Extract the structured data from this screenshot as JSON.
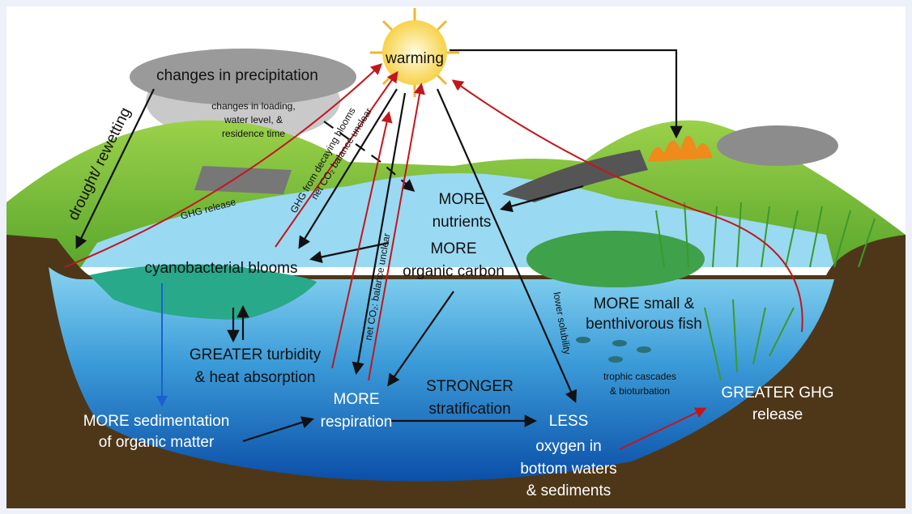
{
  "labels": {
    "warming": "warming",
    "precipitation": "changes in precipitation",
    "loading": [
      "changes in loading,",
      "water level, &",
      "residence time"
    ],
    "drought": "drought/ rewetting",
    "ghg_release": "GHG release",
    "ghg_blooms": "GHG from decaying blooms",
    "net_co2_upper": "net CO₂ balance unclear",
    "net_co2_lower": "net CO₂: balance unclear",
    "nutrients": [
      "MORE",
      "nutrients"
    ],
    "organic_carbon": [
      "MORE",
      "organic carbon"
    ],
    "cyano": "cyanobacterial blooms",
    "turbidity": [
      "GREATER turbidity",
      "& heat absorption"
    ],
    "sedimentation": [
      "MORE sedimentation",
      "of organic matter"
    ],
    "respiration": [
      "MORE",
      "respiration"
    ],
    "stratification": [
      "STRONGER",
      "stratification"
    ],
    "oxygen": [
      "LESS",
      "oxygen in",
      "bottom waters",
      "& sediments"
    ],
    "solubility": "lower solubility",
    "fish": [
      "MORE small &",
      "benthivorous fish"
    ],
    "trophic": [
      "trophic cascades",
      "& bioturbation"
    ],
    "ghg_greater": [
      "GREATER GHG",
      "release"
    ]
  }
}
